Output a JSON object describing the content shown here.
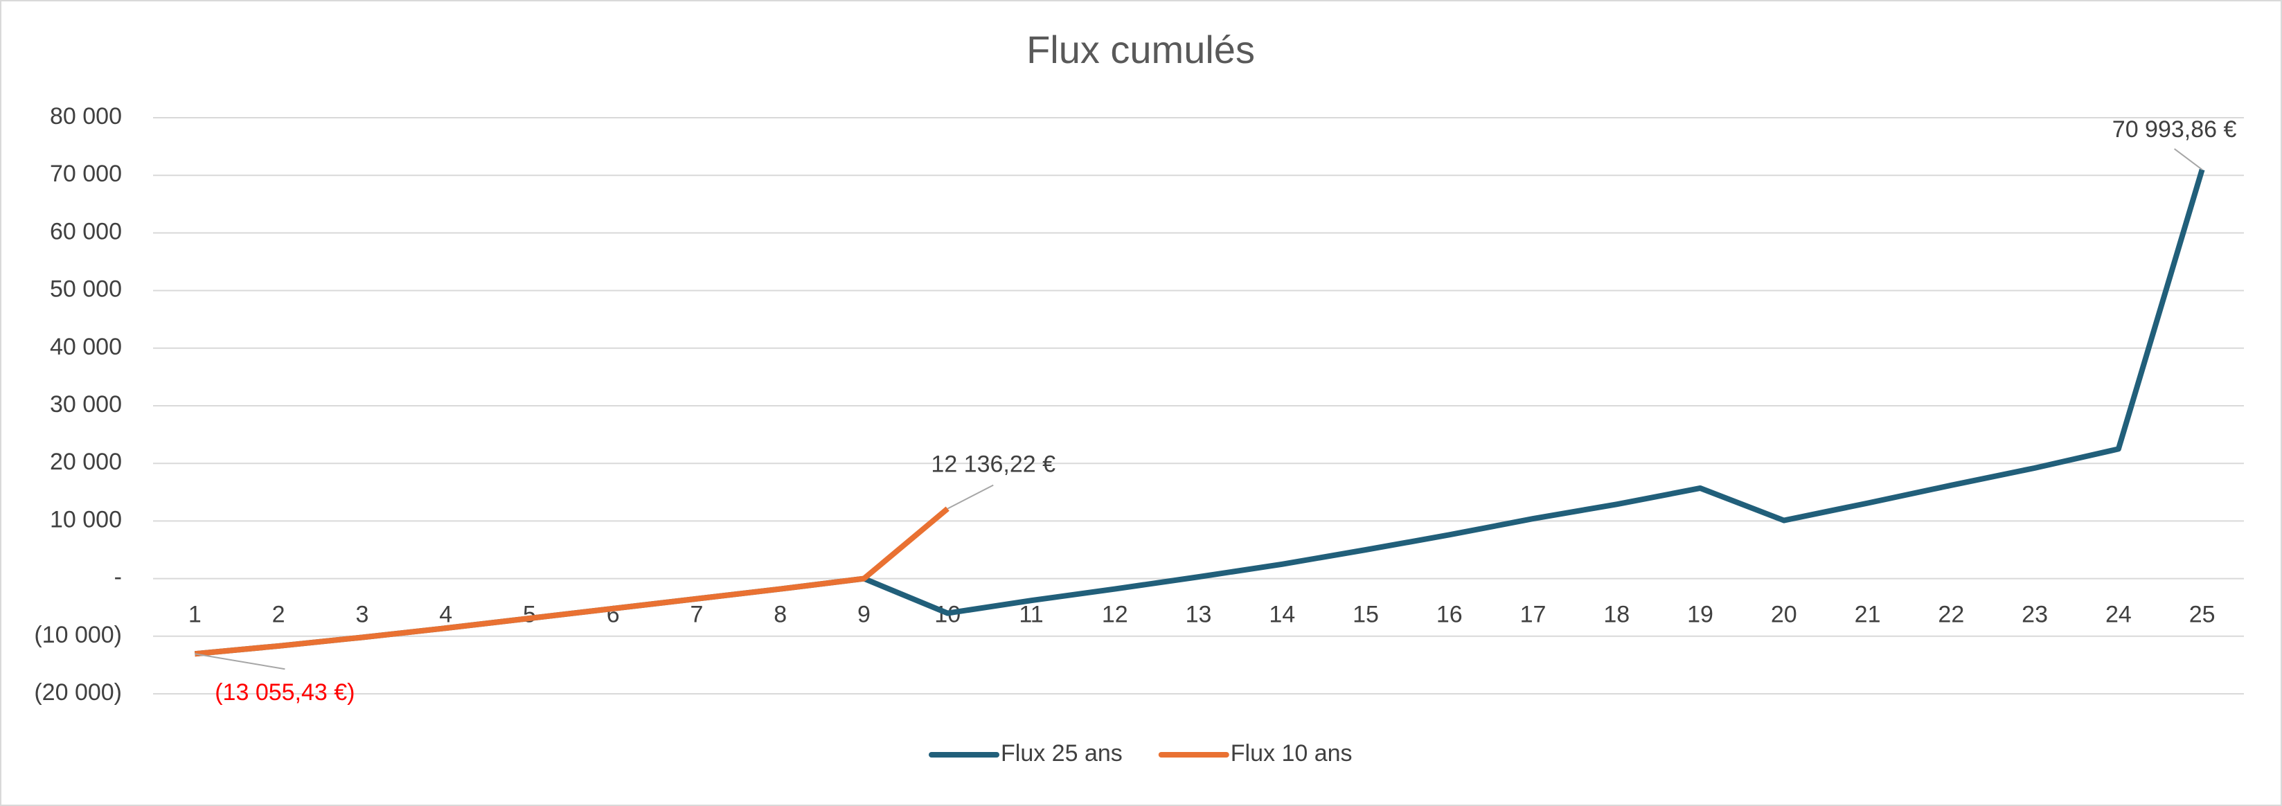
{
  "chart_data": {
    "type": "line",
    "title": "Flux cumulés",
    "categories": [
      "1",
      "2",
      "3",
      "4",
      "5",
      "6",
      "7",
      "8",
      "9",
      "10",
      "11",
      "12",
      "13",
      "14",
      "15",
      "16",
      "17",
      "18",
      "19",
      "20",
      "21",
      "22",
      "23",
      "24",
      "25"
    ],
    "series": [
      {
        "name": "Flux 25 ans",
        "color": "#215f7a",
        "values": [
          -13055.43,
          -11700,
          -10200,
          -8600,
          -6900,
          -5200,
          -3500,
          -1800,
          0,
          -6000,
          -3800,
          -1800,
          300,
          2500,
          5000,
          7600,
          10400,
          12900,
          15700,
          10100,
          13100,
          16200,
          19200,
          22500,
          70993.86
        ],
        "value_labels": [
          null,
          null,
          null,
          null,
          null,
          null,
          null,
          null,
          null,
          null,
          null,
          null,
          null,
          null,
          null,
          null,
          null,
          null,
          null,
          null,
          null,
          null,
          null,
          null,
          "70 993,86  €"
        ]
      },
      {
        "name": "Flux 10 ans",
        "color": "#e97132",
        "values": [
          -13055.43,
          -11700,
          -10200,
          -8600,
          -6900,
          -5200,
          -3500,
          -1800,
          0,
          12136.22,
          null,
          null,
          null,
          null,
          null,
          null,
          null,
          null,
          null,
          null,
          null,
          null,
          null,
          null,
          null
        ],
        "value_labels": [
          "(13 055,43 €)",
          null,
          null,
          null,
          null,
          null,
          null,
          null,
          null,
          "12 136,22 €",
          null,
          null,
          null,
          null,
          null,
          null,
          null,
          null,
          null,
          null,
          null,
          null,
          null,
          null,
          null
        ]
      }
    ],
    "ylim": [
      -20000,
      80000
    ],
    "yticks": [
      {
        "value": -20000,
        "label": "(20 000)"
      },
      {
        "value": -10000,
        "label": "(10 000)"
      },
      {
        "value": 0,
        "label": "-"
      },
      {
        "value": 10000,
        "label": "10 000"
      },
      {
        "value": 20000,
        "label": "20 000"
      },
      {
        "value": 30000,
        "label": "30 000"
      },
      {
        "value": 40000,
        "label": "40 000"
      },
      {
        "value": 50000,
        "label": "50 000"
      },
      {
        "value": 60000,
        "label": "60 000"
      },
      {
        "value": 70000,
        "label": "70 000"
      },
      {
        "value": 80000,
        "label": "80 000"
      }
    ],
    "grid": true,
    "legend": "bottom"
  }
}
